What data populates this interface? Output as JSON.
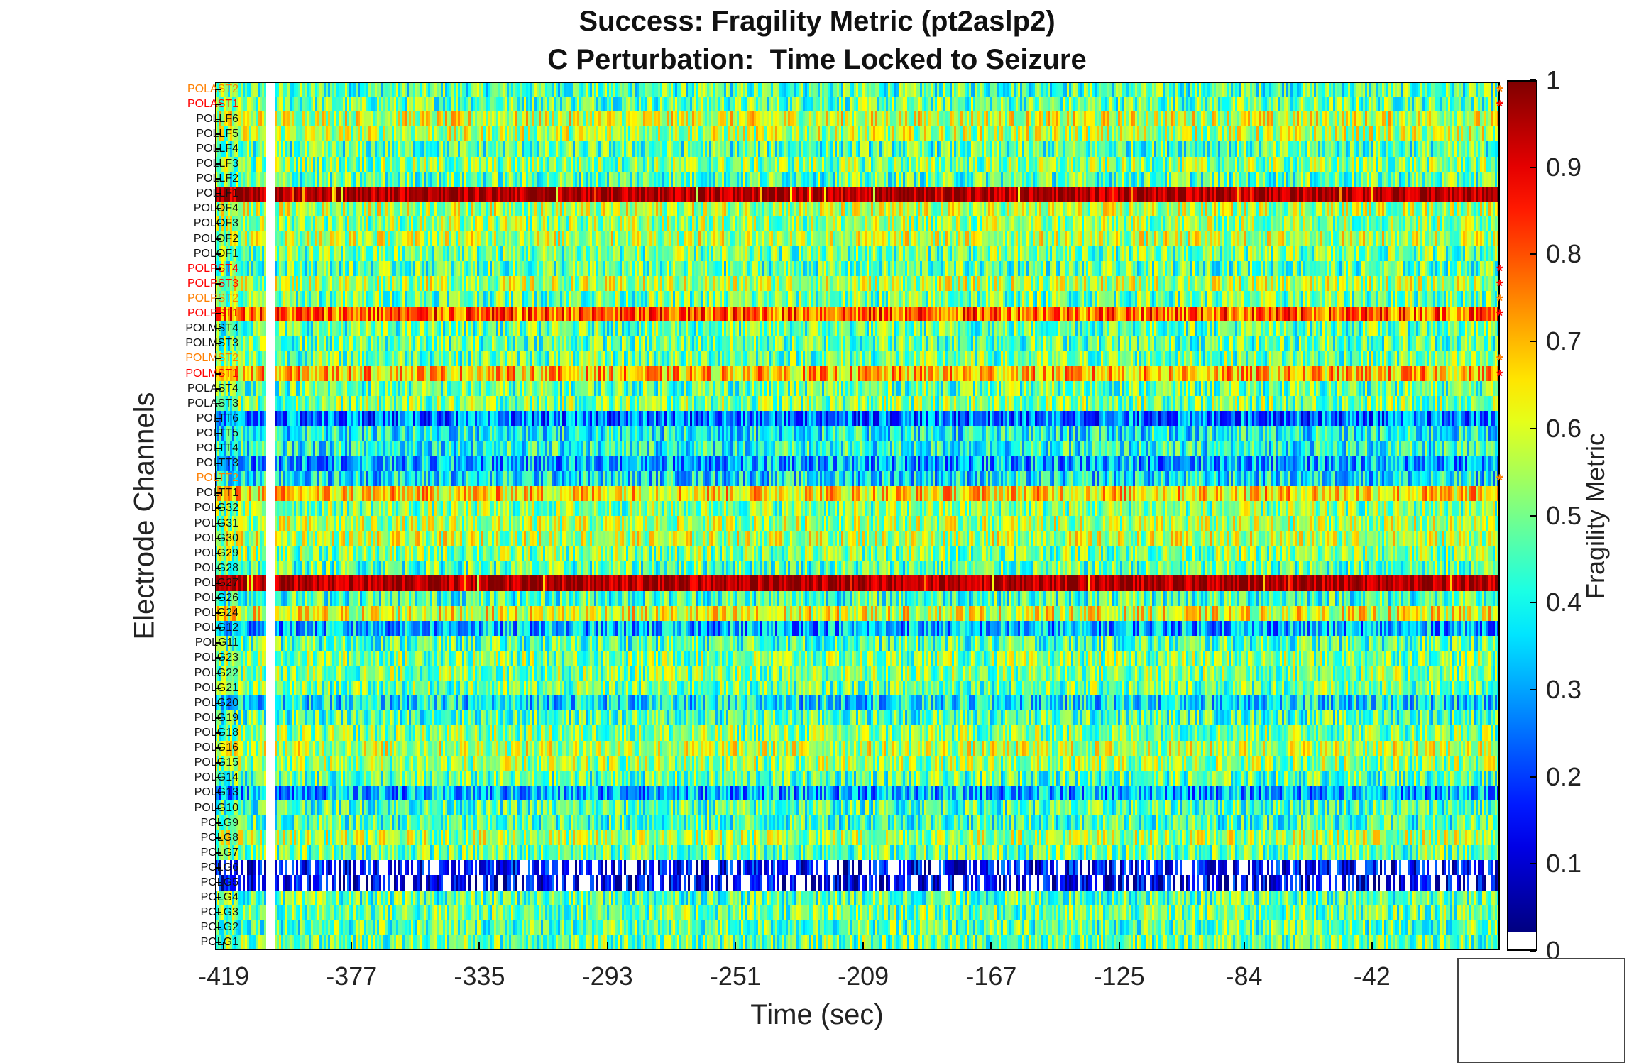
{
  "chart_data": {
    "type": "heatmap",
    "title_line1": "Success: Fragility Metric (pt2aslp2)",
    "title_line2": "C Perturbation:  Time Locked to Seizure",
    "xlabel": "Time (sec)",
    "ylabel": "Electrode Channels",
    "colorbar_label": "Fragility Metric",
    "colormap": "jet",
    "clim": [
      0,
      1
    ],
    "xlim": [
      -419,
      0
    ],
    "x_ticks": [
      "-419",
      "-377",
      "-335",
      "-293",
      "-251",
      "-209",
      "-167",
      "-125",
      "-84",
      "-42"
    ],
    "colorbar_ticks": [
      "1",
      "0.9",
      "0.8",
      "0.7",
      "0.6",
      "0.5",
      "0.4",
      "0.3",
      "0.2",
      "0.1",
      "0"
    ],
    "channels": [
      {
        "name": "POLAST2",
        "color": "#ff7f00",
        "mean": 0.45,
        "marker": "*"
      },
      {
        "name": "POLAST1",
        "color": "#ff0000",
        "mean": 0.47,
        "marker": "*"
      },
      {
        "name": "POLLF6",
        "color": "#111111",
        "mean": 0.58
      },
      {
        "name": "POLLF5",
        "color": "#111111",
        "mean": 0.55
      },
      {
        "name": "POLLF4",
        "color": "#111111",
        "mean": 0.45
      },
      {
        "name": "POLLF3",
        "color": "#111111",
        "mean": 0.5
      },
      {
        "name": "POLLF2",
        "color": "#111111",
        "mean": 0.46
      },
      {
        "name": "POLLF1",
        "color": "#111111",
        "mean": 0.96
      },
      {
        "name": "POLOF4",
        "color": "#111111",
        "mean": 0.55
      },
      {
        "name": "POLOF3",
        "color": "#111111",
        "mean": 0.52
      },
      {
        "name": "POLOF2",
        "color": "#111111",
        "mean": 0.56
      },
      {
        "name": "POLOF1",
        "color": "#111111",
        "mean": 0.48
      },
      {
        "name": "POLPST4",
        "color": "#ff0000",
        "mean": 0.46,
        "marker": "*"
      },
      {
        "name": "POLPST3",
        "color": "#ff0000",
        "mean": 0.55,
        "marker": "*"
      },
      {
        "name": "POLPST2",
        "color": "#ff7f00",
        "mean": 0.48,
        "marker": "*"
      },
      {
        "name": "POLPST1",
        "color": "#ff0000",
        "mean": 0.78,
        "marker": "*"
      },
      {
        "name": "POLMST4",
        "color": "#111111",
        "mean": 0.47
      },
      {
        "name": "POLMST3",
        "color": "#111111",
        "mean": 0.47
      },
      {
        "name": "POLMST2",
        "color": "#ff7f00",
        "mean": 0.48,
        "marker": "*"
      },
      {
        "name": "POLMST1",
        "color": "#ff0000",
        "mean": 0.68,
        "marker": "*"
      },
      {
        "name": "POLAST4",
        "color": "#111111",
        "mean": 0.47
      },
      {
        "name": "POLAST3",
        "color": "#111111",
        "mean": 0.5
      },
      {
        "name": "POLTT6",
        "color": "#111111",
        "mean": 0.24
      },
      {
        "name": "POLTT5",
        "color": "#111111",
        "mean": 0.38
      },
      {
        "name": "POLTT4",
        "color": "#111111",
        "mean": 0.4
      },
      {
        "name": "POLTT3",
        "color": "#111111",
        "mean": 0.3
      },
      {
        "name": "POLTT2",
        "color": "#ff7f00",
        "mean": 0.36,
        "marker": "*"
      },
      {
        "name": "POLTT1",
        "color": "#111111",
        "mean": 0.66
      },
      {
        "name": "POLG32",
        "color": "#111111",
        "mean": 0.5
      },
      {
        "name": "POLG31",
        "color": "#111111",
        "mean": 0.54
      },
      {
        "name": "POLG30",
        "color": "#111111",
        "mean": 0.56
      },
      {
        "name": "POLG29",
        "color": "#111111",
        "mean": 0.5
      },
      {
        "name": "POLG28",
        "color": "#111111",
        "mean": 0.46
      },
      {
        "name": "POLG27",
        "color": "#111111",
        "mean": 0.96
      },
      {
        "name": "POLG26",
        "color": "#111111",
        "mean": 0.44
      },
      {
        "name": "POLG24",
        "color": "#111111",
        "mean": 0.6
      },
      {
        "name": "POLG12",
        "color": "#111111",
        "mean": 0.3
      },
      {
        "name": "POLG11",
        "color": "#111111",
        "mean": 0.45
      },
      {
        "name": "POLG23",
        "color": "#111111",
        "mean": 0.5
      },
      {
        "name": "POLG22",
        "color": "#111111",
        "mean": 0.5
      },
      {
        "name": "POLG21",
        "color": "#111111",
        "mean": 0.48
      },
      {
        "name": "POLG20",
        "color": "#111111",
        "mean": 0.36
      },
      {
        "name": "POLG19",
        "color": "#111111",
        "mean": 0.45
      },
      {
        "name": "POLG18",
        "color": "#111111",
        "mean": 0.5
      },
      {
        "name": "POLG16",
        "color": "#111111",
        "mean": 0.56
      },
      {
        "name": "POLG15",
        "color": "#111111",
        "mean": 0.52
      },
      {
        "name": "POLG14",
        "color": "#111111",
        "mean": 0.46
      },
      {
        "name": "POLG13",
        "color": "#111111",
        "mean": 0.3
      },
      {
        "name": "POLG10",
        "color": "#111111",
        "mean": 0.45
      },
      {
        "name": "POLG9",
        "color": "#111111",
        "mean": 0.44
      },
      {
        "name": "POLG8",
        "color": "#111111",
        "mean": 0.54
      },
      {
        "name": "POLG7",
        "color": "#111111",
        "mean": 0.48
      },
      {
        "name": "POLG6",
        "color": "#111111",
        "mean": 0.12
      },
      {
        "name": "POLG5",
        "color": "#111111",
        "mean": 0.1
      },
      {
        "name": "POLG4",
        "color": "#111111",
        "mean": 0.46
      },
      {
        "name": "POLG3",
        "color": "#111111",
        "mean": 0.48
      },
      {
        "name": "POLG2",
        "color": "#111111",
        "mean": 0.46
      },
      {
        "name": "POLG1",
        "color": "#111111",
        "mean": 0.48
      }
    ]
  }
}
